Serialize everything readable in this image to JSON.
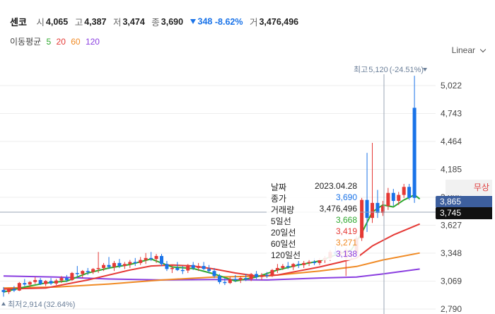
{
  "header": {
    "stock_name": "센코",
    "open_label": "시",
    "open": "4,065",
    "high_label": "고",
    "high": "4,387",
    "low_label": "저",
    "low": "3,474",
    "close_label": "종",
    "close": "3,690",
    "change": "348",
    "change_pct": "-8.62%",
    "volume_label": "거",
    "volume": "3,476,496"
  },
  "ma_legend": {
    "title": "이동평균",
    "periods": [
      "5",
      "20",
      "60",
      "120"
    ],
    "colors": [
      "#2ea82e",
      "#e53935",
      "#f08a24",
      "#8a3ee0"
    ]
  },
  "scale_button": "Linear",
  "badges": {
    "hidden_label": "무상",
    "crosshair_price": "3,865",
    "last_price": "3,745"
  },
  "tooltip": {
    "rows": [
      {
        "label": "날짜",
        "value": "2023.04.28",
        "color": "#222222"
      },
      {
        "label": "종가",
        "value": "3,690",
        "color": "#1a73e8"
      },
      {
        "label": "거래량",
        "value": "3,476,496",
        "color": "#222222"
      },
      {
        "label": "5일선",
        "value": "3,668",
        "color": "#2ea82e"
      },
      {
        "label": "20일선",
        "value": "3,419",
        "color": "#e53935"
      },
      {
        "label": "60일선",
        "value": "3,271",
        "color": "#f08a24"
      },
      {
        "label": "120일선",
        "value": "3,138",
        "color": "#8a3ee0"
      }
    ]
  },
  "chart_data": {
    "type": "candlestick",
    "y_ticks": [
      5022,
      4743,
      4464,
      4185,
      3906,
      3627,
      3348,
      3069,
      2790
    ],
    "y_tick_labels": [
      "5,022",
      "4,743",
      "4,464",
      "4,185",
      "3,906",
      "3,627",
      "3,348",
      "3,069",
      "2,790"
    ],
    "ylim": [
      2790,
      5022
    ],
    "max_annotation": {
      "label": "최고",
      "value": "5,120",
      "pct": "(-24.51%)"
    },
    "min_annotation": {
      "label": "최저",
      "value": "2,914",
      "pct": "(32.64%)"
    },
    "colors": {
      "up": "#e53935",
      "down": "#1a73e8"
    },
    "candles": [
      {
        "o": 2980,
        "h": 3010,
        "l": 2914,
        "c": 2960
      },
      {
        "o": 2960,
        "h": 3000,
        "l": 2940,
        "c": 2990
      },
      {
        "o": 2990,
        "h": 3020,
        "l": 2960,
        "c": 2975
      },
      {
        "o": 2975,
        "h": 3060,
        "l": 2970,
        "c": 3050
      },
      {
        "o": 3050,
        "h": 3090,
        "l": 3020,
        "c": 3035
      },
      {
        "o": 3035,
        "h": 3070,
        "l": 3010,
        "c": 3060
      },
      {
        "o": 3060,
        "h": 3110,
        "l": 3040,
        "c": 3080
      },
      {
        "o": 3080,
        "h": 3100,
        "l": 3030,
        "c": 3040
      },
      {
        "o": 3040,
        "h": 3080,
        "l": 3020,
        "c": 3070
      },
      {
        "o": 3070,
        "h": 3100,
        "l": 3030,
        "c": 3045
      },
      {
        "o": 3045,
        "h": 3090,
        "l": 3030,
        "c": 3075
      },
      {
        "o": 3075,
        "h": 3120,
        "l": 3050,
        "c": 3100
      },
      {
        "o": 3100,
        "h": 3130,
        "l": 3060,
        "c": 3080
      },
      {
        "o": 3080,
        "h": 3160,
        "l": 3070,
        "c": 3150
      },
      {
        "o": 3150,
        "h": 3220,
        "l": 3110,
        "c": 3140
      },
      {
        "o": 3140,
        "h": 3180,
        "l": 3100,
        "c": 3170
      },
      {
        "o": 3170,
        "h": 3200,
        "l": 3130,
        "c": 3160
      },
      {
        "o": 3160,
        "h": 3200,
        "l": 3140,
        "c": 3190
      },
      {
        "o": 3190,
        "h": 3360,
        "l": 3150,
        "c": 3200
      },
      {
        "o": 3200,
        "h": 3250,
        "l": 3170,
        "c": 3230
      },
      {
        "o": 3230,
        "h": 3310,
        "l": 3190,
        "c": 3210
      },
      {
        "o": 3210,
        "h": 3270,
        "l": 3170,
        "c": 3250
      },
      {
        "o": 3250,
        "h": 3290,
        "l": 3200,
        "c": 3220
      },
      {
        "o": 3220,
        "h": 3260,
        "l": 3190,
        "c": 3240
      },
      {
        "o": 3240,
        "h": 3280,
        "l": 3200,
        "c": 3260
      },
      {
        "o": 3260,
        "h": 3300,
        "l": 3220,
        "c": 3250
      },
      {
        "o": 3250,
        "h": 3310,
        "l": 3230,
        "c": 3280
      },
      {
        "o": 3280,
        "h": 3350,
        "l": 3240,
        "c": 3300
      },
      {
        "o": 3300,
        "h": 3360,
        "l": 3270,
        "c": 3290
      },
      {
        "o": 3290,
        "h": 3340,
        "l": 3250,
        "c": 3320
      },
      {
        "o": 3320,
        "h": 3340,
        "l": 3220,
        "c": 3240
      },
      {
        "o": 3240,
        "h": 3270,
        "l": 3170,
        "c": 3190
      },
      {
        "o": 3190,
        "h": 3230,
        "l": 3150,
        "c": 3200
      },
      {
        "o": 3200,
        "h": 3260,
        "l": 3170,
        "c": 3180
      },
      {
        "o": 3180,
        "h": 3220,
        "l": 3140,
        "c": 3175
      },
      {
        "o": 3175,
        "h": 3240,
        "l": 3150,
        "c": 3230
      },
      {
        "o": 3230,
        "h": 3260,
        "l": 3180,
        "c": 3200
      },
      {
        "o": 3200,
        "h": 3250,
        "l": 3170,
        "c": 3220
      },
      {
        "o": 3220,
        "h": 3260,
        "l": 3180,
        "c": 3190
      },
      {
        "o": 3190,
        "h": 3230,
        "l": 3150,
        "c": 3170
      },
      {
        "o": 3170,
        "h": 3200,
        "l": 3100,
        "c": 3120
      },
      {
        "o": 3120,
        "h": 3140,
        "l": 3040,
        "c": 3060
      },
      {
        "o": 3060,
        "h": 3100,
        "l": 3030,
        "c": 3050
      },
      {
        "o": 3050,
        "h": 3110,
        "l": 3040,
        "c": 3090
      },
      {
        "o": 3090,
        "h": 3130,
        "l": 3060,
        "c": 3080
      },
      {
        "o": 3080,
        "h": 3120,
        "l": 3050,
        "c": 3100
      },
      {
        "o": 3100,
        "h": 3140,
        "l": 3070,
        "c": 3090
      },
      {
        "o": 3090,
        "h": 3150,
        "l": 3070,
        "c": 3140
      },
      {
        "o": 3140,
        "h": 3170,
        "l": 3090,
        "c": 3110
      },
      {
        "o": 3110,
        "h": 3150,
        "l": 3080,
        "c": 3130
      },
      {
        "o": 3130,
        "h": 3160,
        "l": 3100,
        "c": 3120
      },
      {
        "o": 3120,
        "h": 3190,
        "l": 3110,
        "c": 3180
      },
      {
        "o": 3180,
        "h": 3240,
        "l": 3150,
        "c": 3200
      },
      {
        "o": 3200,
        "h": 3240,
        "l": 3180,
        "c": 3220
      },
      {
        "o": 3220,
        "h": 3260,
        "l": 3190,
        "c": 3210
      },
      {
        "o": 3210,
        "h": 3250,
        "l": 3180,
        "c": 3240
      },
      {
        "o": 3240,
        "h": 3270,
        "l": 3200,
        "c": 3230
      },
      {
        "o": 3230,
        "h": 3270,
        "l": 3200,
        "c": 3250
      },
      {
        "o": 3250,
        "h": 3290,
        "l": 3220,
        "c": 3260
      },
      {
        "o": 3260,
        "h": 3300,
        "l": 3230,
        "c": 3250
      },
      {
        "o": 3250,
        "h": 3300,
        "l": 3230,
        "c": 3280
      },
      {
        "o": 3280,
        "h": 3320,
        "l": 3250,
        "c": 3300
      },
      {
        "o": 3300,
        "h": 3380,
        "l": 3270,
        "c": 3360
      },
      {
        "o": 3360,
        "h": 3420,
        "l": 3320,
        "c": 3340
      },
      {
        "o": 3340,
        "h": 3380,
        "l": 3310,
        "c": 3360
      },
      {
        "o": 3300,
        "h": 3400,
        "l": 3120,
        "c": 3380
      },
      {
        "o": 3320,
        "h": 3360,
        "l": 3290,
        "c": 3340
      },
      {
        "o": 3340,
        "h": 3520,
        "l": 3330,
        "c": 3500
      },
      {
        "o": 3500,
        "h": 3900,
        "l": 3470,
        "c": 3880
      },
      {
        "o": 3880,
        "h": 4350,
        "l": 3560,
        "c": 3700
      },
      {
        "o": 3700,
        "h": 4450,
        "l": 3650,
        "c": 3850
      },
      {
        "o": 3850,
        "h": 3980,
        "l": 3700,
        "c": 3750
      },
      {
        "o": 3750,
        "h": 3870,
        "l": 3720,
        "c": 3820
      },
      {
        "o": 3820,
        "h": 4000,
        "l": 3780,
        "c": 3950
      },
      {
        "o": 3950,
        "h": 3990,
        "l": 3820,
        "c": 3870
      },
      {
        "o": 3870,
        "h": 3960,
        "l": 3830,
        "c": 3930
      },
      {
        "o": 3930,
        "h": 4040,
        "l": 3900,
        "c": 4010
      },
      {
        "o": 4010,
        "h": 4040,
        "l": 3880,
        "c": 3900
      },
      {
        "o": 4800,
        "h": 5120,
        "l": 3850,
        "c": 3900
      }
    ],
    "ma_points": {
      "ma5": [
        [
          0,
          2960
        ],
        [
          4,
          3010
        ],
        [
          8,
          3050
        ],
        [
          12,
          3070
        ],
        [
          16,
          3150
        ],
        [
          20,
          3200
        ],
        [
          24,
          3235
        ],
        [
          28,
          3290
        ],
        [
          32,
          3210
        ],
        [
          36,
          3195
        ],
        [
          40,
          3140
        ],
        [
          44,
          3070
        ],
        [
          48,
          3110
        ],
        [
          52,
          3180
        ],
        [
          56,
          3230
        ],
        [
          60,
          3270
        ],
        [
          63,
          3330
        ],
        [
          66,
          3380
        ],
        [
          68,
          3550
        ],
        [
          70,
          3760
        ],
        [
          72,
          3830
        ],
        [
          74,
          3810
        ],
        [
          76,
          3880
        ],
        [
          78,
          3930
        ],
        [
          79,
          3890
        ]
      ],
      "ma20": [
        [
          0,
          2990
        ],
        [
          8,
          3000
        ],
        [
          16,
          3080
        ],
        [
          24,
          3180
        ],
        [
          28,
          3220
        ],
        [
          32,
          3230
        ],
        [
          36,
          3220
        ],
        [
          40,
          3190
        ],
        [
          44,
          3150
        ],
        [
          48,
          3120
        ],
        [
          52,
          3130
        ],
        [
          56,
          3170
        ],
        [
          60,
          3210
        ],
        [
          64,
          3260
        ],
        [
          67,
          3300
        ],
        [
          70,
          3420
        ],
        [
          74,
          3530
        ],
        [
          79,
          3640
        ]
      ],
      "ma60": [
        [
          0,
          3000
        ],
        [
          10,
          3010
        ],
        [
          20,
          3040
        ],
        [
          30,
          3080
        ],
        [
          40,
          3110
        ],
        [
          50,
          3120
        ],
        [
          60,
          3170
        ],
        [
          67,
          3215
        ],
        [
          72,
          3280
        ],
        [
          79,
          3350
        ]
      ],
      "ma120": [
        [
          0,
          3120
        ],
        [
          10,
          3110
        ],
        [
          20,
          3090
        ],
        [
          30,
          3080
        ],
        [
          40,
          3085
        ],
        [
          50,
          3080
        ],
        [
          60,
          3100
        ],
        [
          67,
          3110
        ],
        [
          72,
          3140
        ],
        [
          79,
          3190
        ]
      ]
    }
  }
}
